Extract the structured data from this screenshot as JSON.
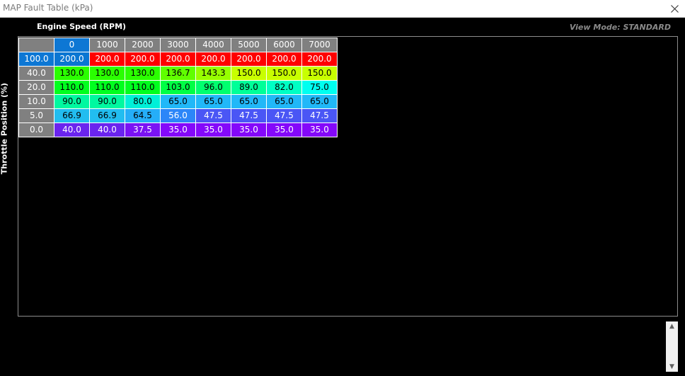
{
  "window": {
    "title": "MAP Fault Table (kPa)"
  },
  "labels": {
    "x_axis": "Engine Speed (RPM)",
    "y_axis": "Throttle Position (%)",
    "view_mode": "View Mode: STANDARD"
  },
  "table": {
    "columns": [
      "0",
      "1000",
      "2000",
      "3000",
      "4000",
      "5000",
      "6000",
      "7000"
    ],
    "selected_column": 0,
    "selected_row": 0,
    "rows": [
      {
        "tps": "100.0",
        "values": [
          "200.0",
          "200.0",
          "200.0",
          "200.0",
          "200.0",
          "200.0",
          "200.0",
          "200.0"
        ],
        "colors": [
          "#0a76d2",
          "#ff0000",
          "#ff0000",
          "#ff0000",
          "#ff0000",
          "#ff0000",
          "#ff0000",
          "#ff0000"
        ]
      },
      {
        "tps": "40.0",
        "values": [
          "130.0",
          "130.0",
          "130.0",
          "136.7",
          "143.3",
          "150.0",
          "150.0",
          "150.0"
        ],
        "colors": [
          "#2aff00",
          "#2aff00",
          "#2aff00",
          "#60ff00",
          "#96ff00",
          "#c8ff00",
          "#c8ff00",
          "#c8ff00"
        ]
      },
      {
        "tps": "20.0",
        "values": [
          "110.0",
          "110.0",
          "110.0",
          "103.0",
          "96.0",
          "89.0",
          "82.0",
          "75.0"
        ],
        "colors": [
          "#00ff1e",
          "#00ff1e",
          "#00ff1e",
          "#00ff45",
          "#00ff6e",
          "#00ff98",
          "#00ffc4",
          "#00fff0"
        ]
      },
      {
        "tps": "10.0",
        "values": [
          "90.0",
          "90.0",
          "80.0",
          "65.0",
          "65.0",
          "65.0",
          "65.0",
          "65.0"
        ],
        "colors": [
          "#00f8a0",
          "#00f8a0",
          "#00f0d8",
          "#21b8f8",
          "#21b8f8",
          "#21b8f8",
          "#21b8f8",
          "#21b8f8"
        ]
      },
      {
        "tps": "5.0",
        "values": [
          "66.9",
          "66.9",
          "64.5",
          "56.0",
          "47.5",
          "47.5",
          "47.5",
          "47.5"
        ],
        "colors": [
          "#22bdf0",
          "#22bdf0",
          "#25aef8",
          "#2c86f8",
          "#4a56f5",
          "#4a56f5",
          "#4a56f5",
          "#4a56f5"
        ]
      },
      {
        "tps": "0.0",
        "values": [
          "40.0",
          "40.0",
          "37.5",
          "35.0",
          "35.0",
          "35.0",
          "35.0",
          "35.0"
        ],
        "colors": [
          "#6a24ee",
          "#6a24ee",
          "#7a12f4",
          "#8408fa",
          "#8408fa",
          "#8408fa",
          "#8408fa",
          "#8408fa"
        ]
      }
    ]
  }
}
